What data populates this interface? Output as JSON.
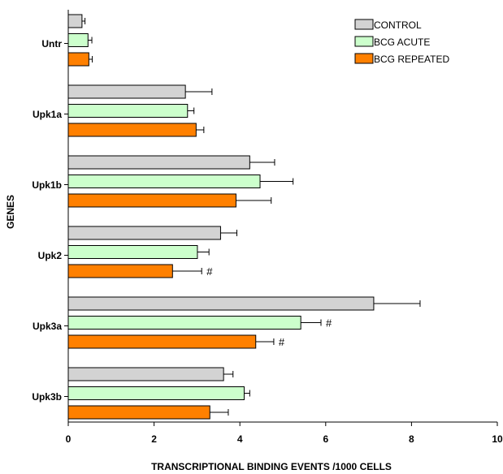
{
  "chart_data": {
    "type": "bar",
    "orientation": "horizontal",
    "title": "",
    "xlabel": "TRANSCRIPTIONAL BINDING EVENTS /1000 CELLS",
    "ylabel": "GENES",
    "xlim": [
      0,
      10
    ],
    "xticks": [
      "0",
      "2",
      "4",
      "6",
      "8",
      "10"
    ],
    "grid": false,
    "legend_position": "top-right",
    "categories": [
      "Untr",
      "Upk1a",
      "Upk1b",
      "Upk2",
      "Upk3a",
      "Upk3b"
    ],
    "series": [
      {
        "name": "CONTROL",
        "color": "#d3d3d3",
        "values": [
          0.32,
          2.73,
          4.23,
          3.55,
          7.12,
          3.62
        ],
        "errors": [
          0.07,
          0.62,
          0.58,
          0.38,
          1.08,
          0.22
        ],
        "annotations": [
          "",
          "",
          "",
          "",
          "",
          ""
        ]
      },
      {
        "name": "BCG ACUTE",
        "color": "#ccffcc",
        "values": [
          0.46,
          2.78,
          4.47,
          3.01,
          5.42,
          4.1
        ],
        "errors": [
          0.09,
          0.15,
          0.77,
          0.27,
          0.47,
          0.13
        ],
        "annotations": [
          "",
          "",
          "",
          "",
          "#",
          ""
        ]
      },
      {
        "name": "BCG REPEATED",
        "color": "#ff8000",
        "values": [
          0.48,
          2.98,
          3.91,
          2.43,
          4.37,
          3.3
        ],
        "errors": [
          0.08,
          0.18,
          0.82,
          0.68,
          0.42,
          0.43
        ],
        "annotations": [
          "",
          "",
          "",
          "#",
          "#",
          ""
        ]
      }
    ]
  }
}
